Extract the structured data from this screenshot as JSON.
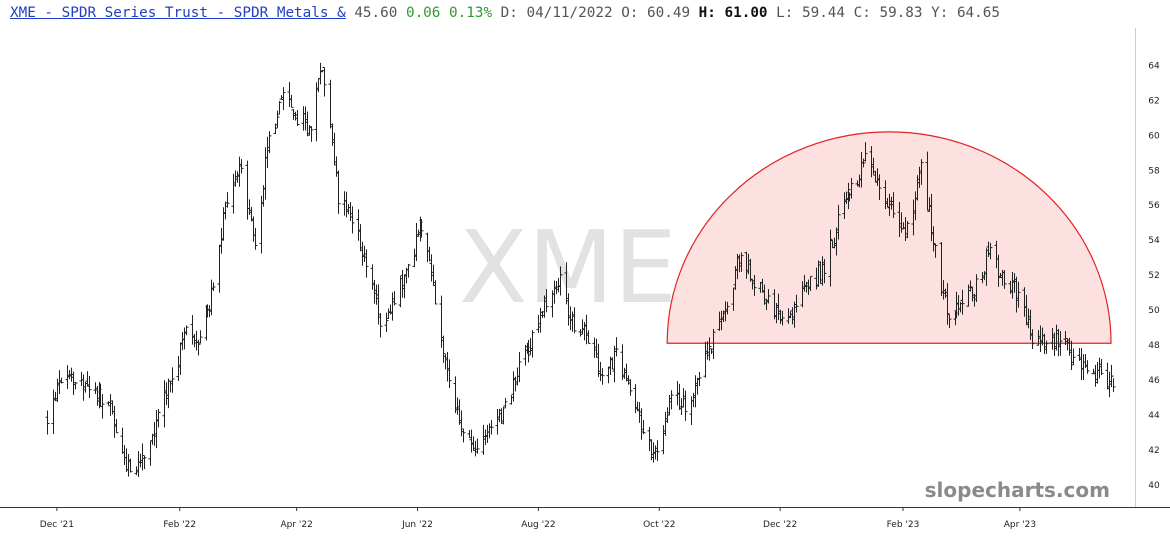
{
  "header": {
    "title": "XME - SPDR Series Trust - SPDR Metals &",
    "last": "45.60",
    "change": "0.06",
    "change_pct": "0.13%",
    "date": "D: 04/11/2022",
    "open": "O: 60.49",
    "high_label": "H:",
    "high_value": "61.00",
    "low": "L: 59.44",
    "close": "C: 59.83",
    "y": "Y: 64.65"
  },
  "watermark": "slopecharts.com",
  "colors": {
    "bars": "#222222",
    "title_link": "#1f3fc4",
    "positive": "#2e9a2e",
    "shape_fill": "#fde1e1",
    "shape_stroke": "#e22222",
    "axis": "#333333",
    "ticker_watermark": "#e2e2e2"
  },
  "chart_data": {
    "type": "ohlc",
    "ticker_watermark": "XME",
    "x_ticks": [
      "Dec '21",
      "Feb '22",
      "Apr '22",
      "Jun '22",
      "Aug '22",
      "Oct '22",
      "Dec '22",
      "Feb '23",
      "Apr '23"
    ],
    "y_ticks": [
      "40",
      "42",
      "44",
      "46",
      "48",
      "50",
      "52",
      "54",
      "56",
      "58",
      "60",
      "62",
      "64"
    ],
    "ylim": [
      39.3,
      65.8
    ],
    "date_range": [
      "2021-11-25",
      "2023-05-19"
    ],
    "price_path": [
      [
        "2021-11-26",
        44.0
      ],
      [
        "2021-12-03",
        45.8
      ],
      [
        "2021-12-10",
        46.2
      ],
      [
        "2021-12-17",
        45.2
      ],
      [
        "2021-12-24",
        45.0
      ],
      [
        "2021-12-31",
        43.5
      ],
      [
        "2022-01-07",
        40.5
      ],
      [
        "2022-01-14",
        42.0
      ],
      [
        "2022-01-21",
        44.0
      ],
      [
        "2022-01-28",
        46.0
      ],
      [
        "2022-02-04",
        48.8
      ],
      [
        "2022-02-11",
        48.0
      ],
      [
        "2022-02-18",
        51.5
      ],
      [
        "2022-02-25",
        56.5
      ],
      [
        "2022-03-04",
        58.0
      ],
      [
        "2022-03-11",
        54.0
      ],
      [
        "2022-03-18",
        60.0
      ],
      [
        "2022-03-25",
        62.0
      ],
      [
        "2022-04-01",
        61.0
      ],
      [
        "2022-04-08",
        60.5
      ],
      [
        "2022-04-14",
        64.0
      ],
      [
        "2022-04-22",
        56.5
      ],
      [
        "2022-04-29",
        55.0
      ],
      [
        "2022-05-06",
        53.0
      ],
      [
        "2022-05-13",
        49.5
      ],
      [
        "2022-05-20",
        50.5
      ],
      [
        "2022-05-27",
        52.5
      ],
      [
        "2022-06-03",
        55.0
      ],
      [
        "2022-06-10",
        50.5
      ],
      [
        "2022-06-17",
        46.0
      ],
      [
        "2022-06-24",
        42.5
      ],
      [
        "2022-07-01",
        42.0
      ],
      [
        "2022-07-08",
        43.0
      ],
      [
        "2022-07-15",
        44.5
      ],
      [
        "2022-07-22",
        46.5
      ],
      [
        "2022-07-29",
        48.5
      ],
      [
        "2022-08-05",
        50.5
      ],
      [
        "2022-08-12",
        51.5
      ],
      [
        "2022-08-19",
        49.0
      ],
      [
        "2022-08-26",
        48.5
      ],
      [
        "2022-09-02",
        46.0
      ],
      [
        "2022-09-09",
        47.5
      ],
      [
        "2022-09-16",
        45.5
      ],
      [
        "2022-09-23",
        43.0
      ],
      [
        "2022-09-30",
        41.5
      ],
      [
        "2022-10-07",
        45.5
      ],
      [
        "2022-10-14",
        44.5
      ],
      [
        "2022-10-21",
        46.5
      ],
      [
        "2022-10-28",
        48.5
      ],
      [
        "2022-11-04",
        50.5
      ],
      [
        "2022-11-11",
        53.5
      ],
      [
        "2022-11-18",
        51.5
      ],
      [
        "2022-11-25",
        50.5
      ],
      [
        "2022-12-02",
        49.0
      ],
      [
        "2022-12-09",
        50.5
      ],
      [
        "2022-12-16",
        51.5
      ],
      [
        "2022-12-23",
        52.5
      ],
      [
        "2022-12-30",
        55.0
      ],
      [
        "2023-01-06",
        57.0
      ],
      [
        "2023-01-13",
        58.5
      ],
      [
        "2023-01-20",
        57.0
      ],
      [
        "2023-01-27",
        55.5
      ],
      [
        "2023-02-03",
        54.5
      ],
      [
        "2023-02-10",
        58.0
      ],
      [
        "2023-02-17",
        53.5
      ],
      [
        "2023-02-24",
        49.0
      ],
      [
        "2023-03-03",
        50.5
      ],
      [
        "2023-03-10",
        51.5
      ],
      [
        "2023-03-17",
        53.5
      ],
      [
        "2023-03-24",
        51.5
      ],
      [
        "2023-03-31",
        51.0
      ],
      [
        "2023-04-07",
        48.5
      ],
      [
        "2023-04-14",
        48.0
      ],
      [
        "2023-04-21",
        48.5
      ],
      [
        "2023-04-28",
        47.0
      ],
      [
        "2023-05-05",
        46.5
      ],
      [
        "2023-05-12",
        46.5
      ],
      [
        "2023-05-18",
        45.6
      ]
    ],
    "annotation": {
      "type": "semicircle",
      "start": "2022-10-05",
      "end": "2023-05-17",
      "baseline": 48.1,
      "top": 60.2
    }
  }
}
